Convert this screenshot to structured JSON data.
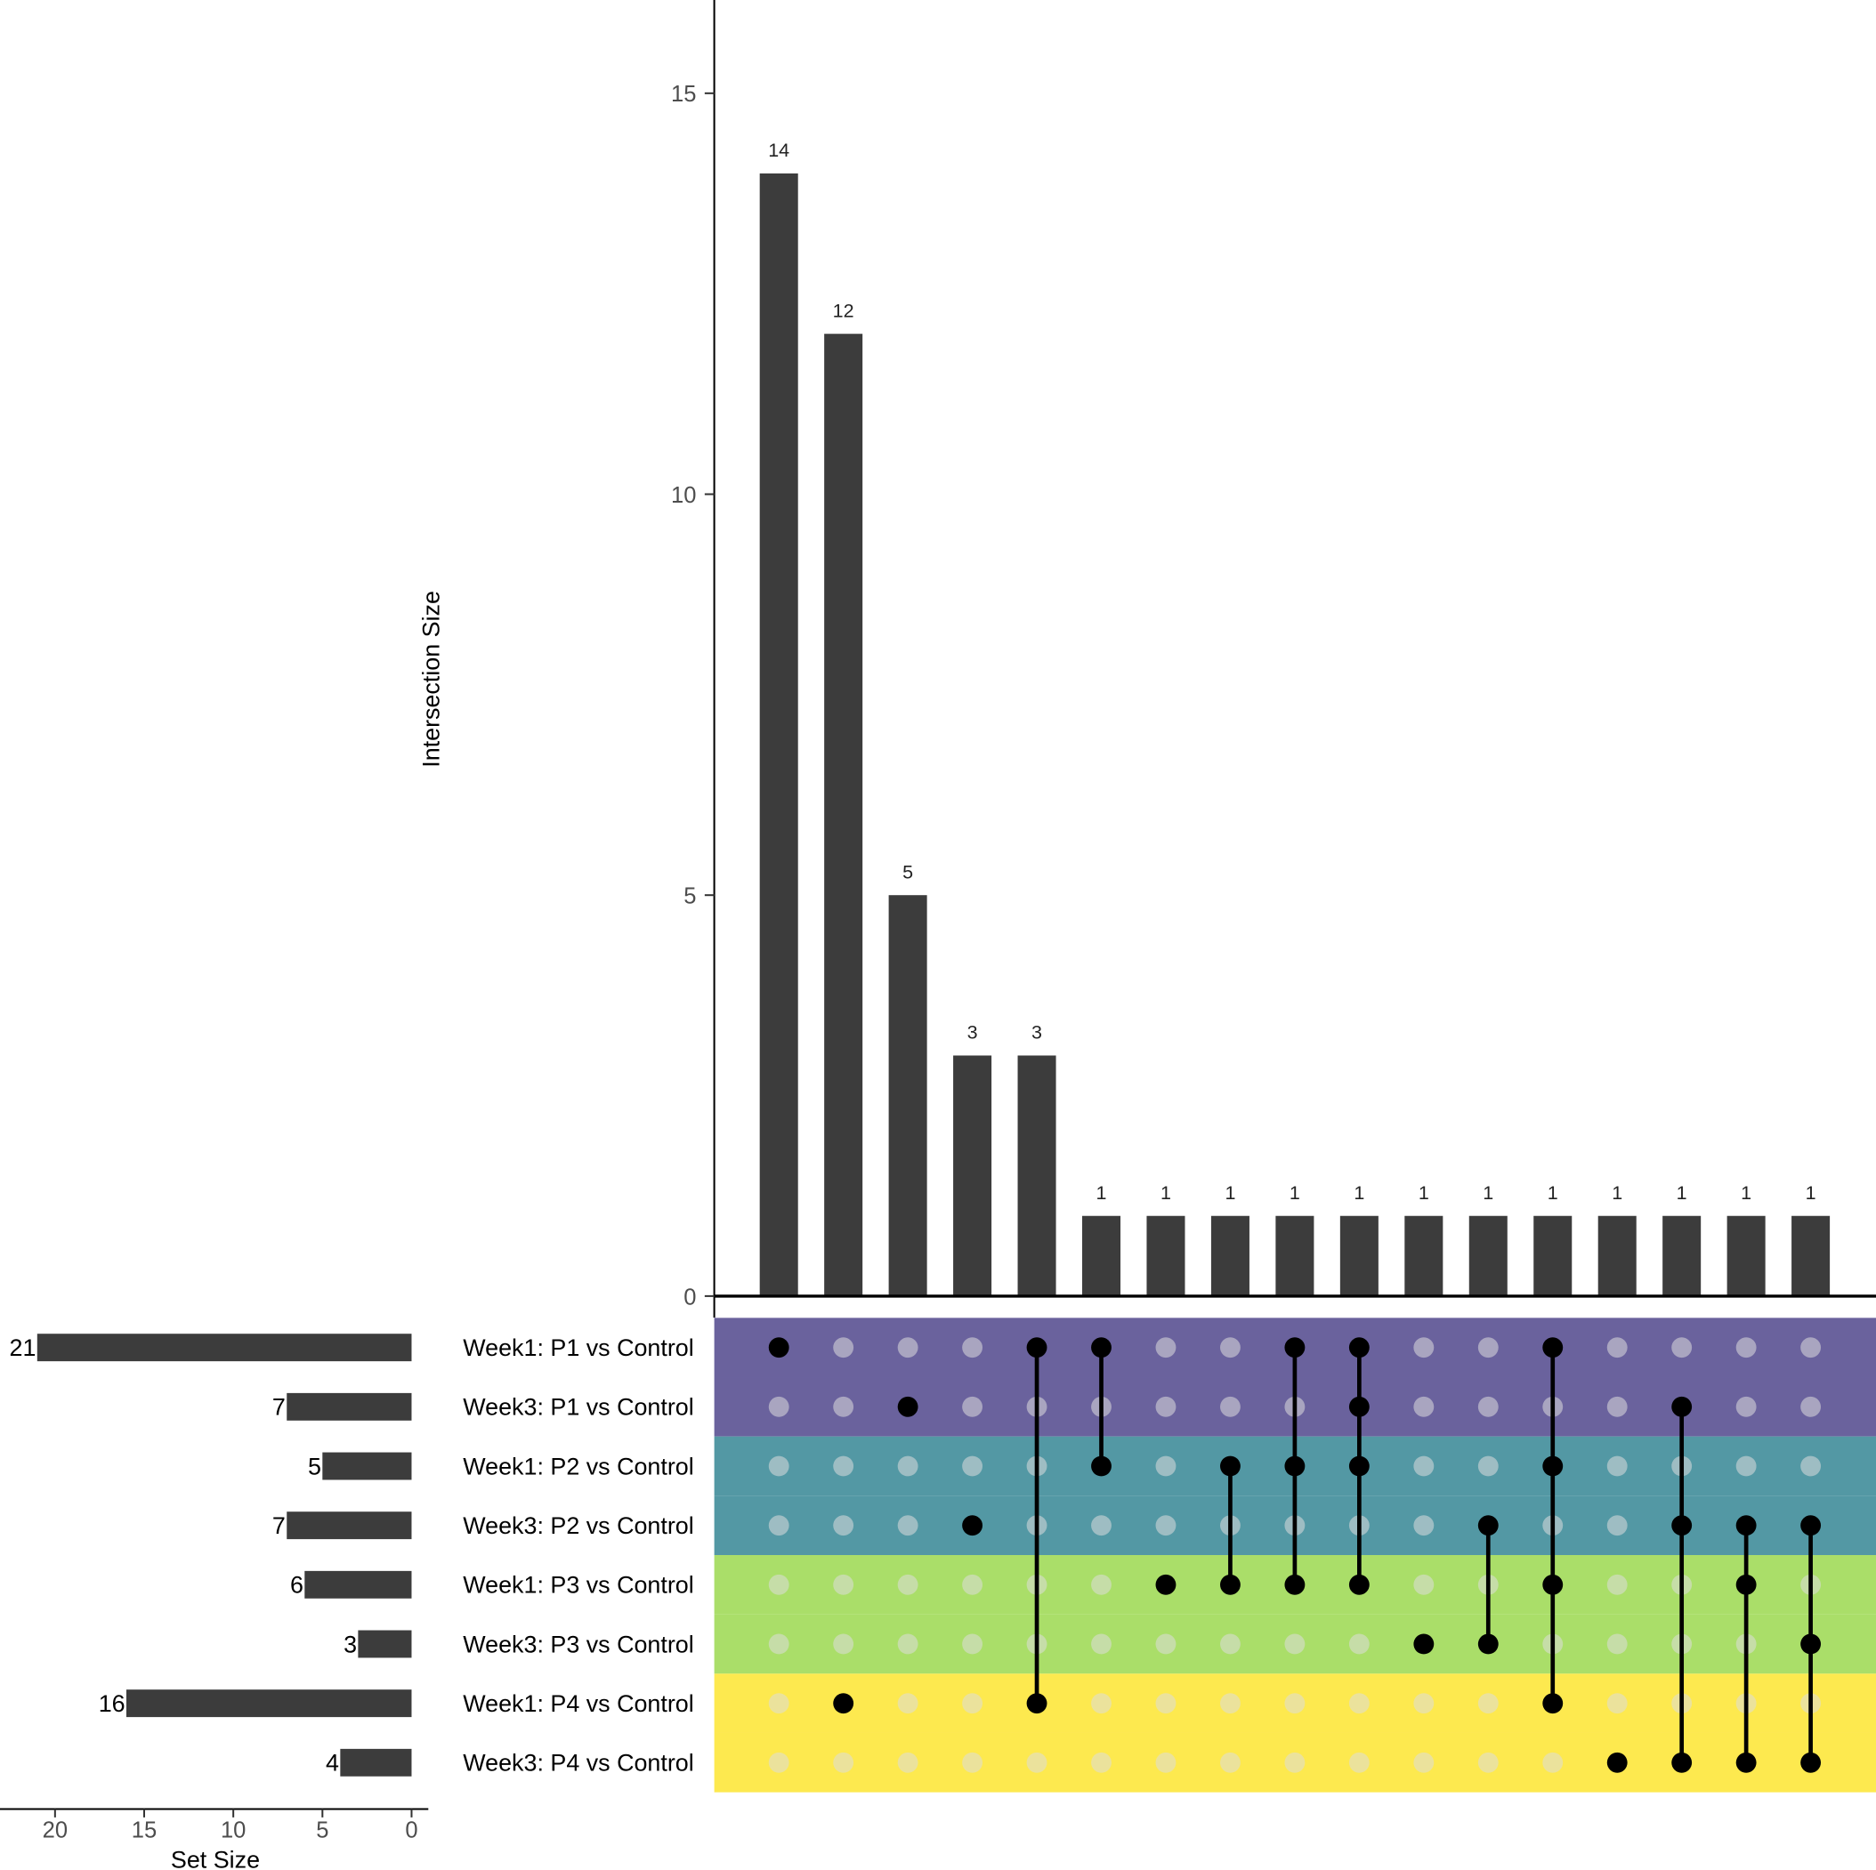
{
  "chart_data": {
    "type": "bar",
    "subtype": "upset",
    "intersection_axis": {
      "label": "Intersection Size",
      "ylim": [
        0,
        16
      ],
      "ticks": [
        0,
        5,
        10,
        15
      ]
    },
    "set_size_axis": {
      "label": "Set Size",
      "xlim": [
        0,
        22
      ],
      "ticks": [
        0,
        5,
        10,
        15,
        20
      ],
      "reversed": true
    },
    "grid": false,
    "sets": [
      {
        "name": "Week1: P1 vs Control",
        "size": 21,
        "band_color": "#6a629d"
      },
      {
        "name": "Week3: P1 vs Control",
        "size": 7,
        "band_color": "#6a629d"
      },
      {
        "name": "Week1: P2 vs Control",
        "size": 5,
        "band_color": "#5398a4"
      },
      {
        "name": "Week3: P2 vs Control",
        "size": 7,
        "band_color": "#5398a4"
      },
      {
        "name": "Week1: P3 vs Control",
        "size": 6,
        "band_color": "#aade69"
      },
      {
        "name": "Week3: P3 vs Control",
        "size": 3,
        "band_color": "#aade69"
      },
      {
        "name": "Week1: P4 vs Control",
        "size": 16,
        "band_color": "#fde94f"
      },
      {
        "name": "Week3: P4 vs Control",
        "size": 4,
        "band_color": "#fde94f"
      }
    ],
    "intersections": [
      {
        "size": 14,
        "sets": [
          0
        ]
      },
      {
        "size": 12,
        "sets": [
          6
        ]
      },
      {
        "size": 5,
        "sets": [
          1
        ]
      },
      {
        "size": 3,
        "sets": [
          3
        ]
      },
      {
        "size": 3,
        "sets": [
          0,
          6
        ]
      },
      {
        "size": 1,
        "sets": [
          0,
          2
        ]
      },
      {
        "size": 1,
        "sets": [
          4
        ]
      },
      {
        "size": 1,
        "sets": [
          2,
          4
        ]
      },
      {
        "size": 1,
        "sets": [
          0,
          2,
          4
        ]
      },
      {
        "size": 1,
        "sets": [
          0,
          1,
          2,
          4
        ]
      },
      {
        "size": 1,
        "sets": [
          5
        ]
      },
      {
        "size": 1,
        "sets": [
          3,
          5
        ]
      },
      {
        "size": 1,
        "sets": [
          0,
          2,
          4,
          6
        ]
      },
      {
        "size": 1,
        "sets": [
          7
        ]
      },
      {
        "size": 1,
        "sets": [
          1,
          3,
          7
        ]
      },
      {
        "size": 1,
        "sets": [
          3,
          4,
          7
        ]
      },
      {
        "size": 1,
        "sets": [
          3,
          5,
          7
        ]
      }
    ],
    "colors": {
      "bar": "#3c3c3c",
      "dot_active": "#000000",
      "dot_inactive": "#dcdcdc"
    }
  }
}
